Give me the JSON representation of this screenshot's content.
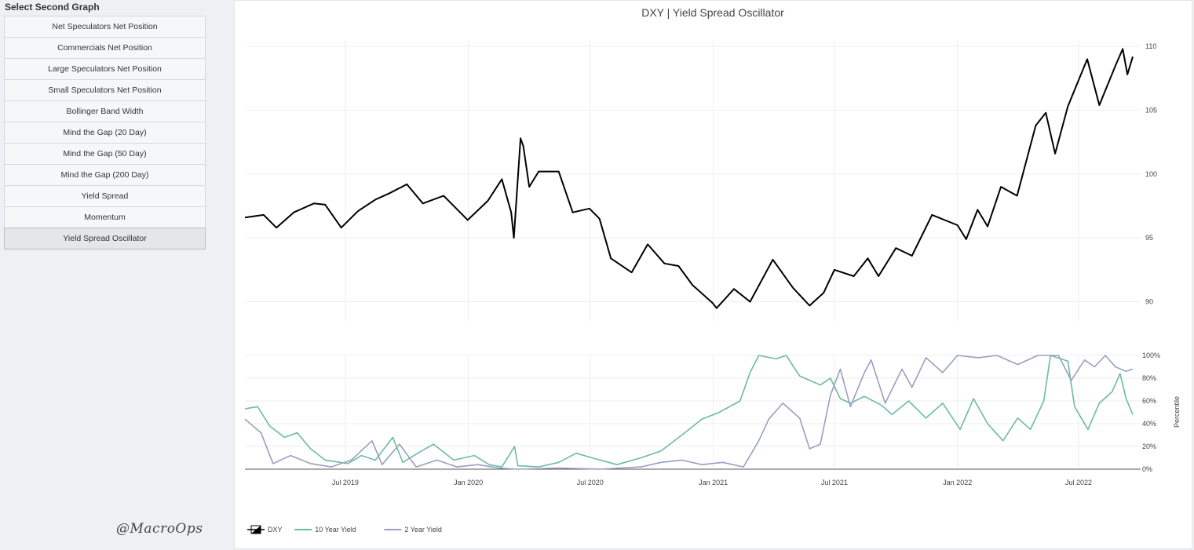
{
  "sidebar": {
    "title": "Select Second Graph",
    "buttons": [
      {
        "label": "Net Speculators Net Position",
        "active": false
      },
      {
        "label": "Commercials Net Position",
        "active": false
      },
      {
        "label": "Large Speculators Net Position",
        "active": false
      },
      {
        "label": "Small Speculators Net Position",
        "active": false
      },
      {
        "label": "Bollinger Band Width",
        "active": false
      },
      {
        "label": "Mind the Gap (20 Day)",
        "active": false
      },
      {
        "label": "Mind the Gap (50 Day)",
        "active": false
      },
      {
        "label": "Mind the Gap (200 Day)",
        "active": false
      },
      {
        "label": "Yield Spread",
        "active": false
      },
      {
        "label": "Momentum",
        "active": false
      },
      {
        "label": "Yield Spread Oscillator",
        "active": true
      }
    ]
  },
  "watermark": "@MacroOps",
  "chart_data": {
    "type": "line",
    "title": "DXY | Yield Spread Oscillator",
    "x_ticks": [
      "Jul 2019",
      "Jan 2020",
      "Jul 2020",
      "Jan 2021",
      "Jul 2021",
      "Jan 2022",
      "Jul 2022"
    ],
    "x_tick_dates": [
      "2019-07-01",
      "2020-01-01",
      "2020-07-01",
      "2021-01-01",
      "2021-07-01",
      "2022-01-01",
      "2022-07-01"
    ],
    "x_range": [
      "2019-02-01",
      "2022-09-20"
    ],
    "grid": true,
    "legend_position": "bottom-left",
    "top_panel": {
      "y_range": [
        88.5,
        110.5
      ],
      "y_ticks": [
        "90",
        "95",
        "100",
        "105",
        "110"
      ],
      "y_tick_values": [
        90,
        95,
        100,
        105,
        110
      ],
      "series": [
        {
          "name": "DXY",
          "color": "#000000",
          "points": [
            [
              "2019-02-01",
              96.6
            ],
            [
              "2019-03-01",
              96.8
            ],
            [
              "2019-03-20",
              95.8
            ],
            [
              "2019-04-15",
              97.0
            ],
            [
              "2019-05-15",
              97.7
            ],
            [
              "2019-06-01",
              97.6
            ],
            [
              "2019-06-25",
              95.8
            ],
            [
              "2019-07-20",
              97.1
            ],
            [
              "2019-08-15",
              98.0
            ],
            [
              "2019-09-05",
              98.5
            ],
            [
              "2019-10-01",
              99.2
            ],
            [
              "2019-10-25",
              97.7
            ],
            [
              "2019-11-25",
              98.3
            ],
            [
              "2019-12-31",
              96.4
            ],
            [
              "2020-01-30",
              97.9
            ],
            [
              "2020-02-20",
              99.6
            ],
            [
              "2020-03-05",
              97.0
            ],
            [
              "2020-03-09",
              95.0
            ],
            [
              "2020-03-19",
              102.8
            ],
            [
              "2020-03-23",
              102.2
            ],
            [
              "2020-04-01",
              99.0
            ],
            [
              "2020-04-15",
              100.2
            ],
            [
              "2020-05-15",
              100.2
            ],
            [
              "2020-06-05",
              97.0
            ],
            [
              "2020-06-30",
              97.3
            ],
            [
              "2020-07-15",
              96.5
            ],
            [
              "2020-08-01",
              93.4
            ],
            [
              "2020-09-01",
              92.3
            ],
            [
              "2020-09-25",
              94.5
            ],
            [
              "2020-10-20",
              93.0
            ],
            [
              "2020-11-10",
              92.8
            ],
            [
              "2020-12-01",
              91.3
            ],
            [
              "2020-12-31",
              89.9
            ],
            [
              "2021-01-06",
              89.5
            ],
            [
              "2021-02-01",
              91.0
            ],
            [
              "2021-02-25",
              90.0
            ],
            [
              "2021-03-31",
              93.3
            ],
            [
              "2021-04-30",
              91.1
            ],
            [
              "2021-05-25",
              89.7
            ],
            [
              "2021-06-15",
              90.7
            ],
            [
              "2021-07-01",
              92.5
            ],
            [
              "2021-07-30",
              92.0
            ],
            [
              "2021-08-20",
              93.4
            ],
            [
              "2021-09-05",
              92.0
            ],
            [
              "2021-10-01",
              94.2
            ],
            [
              "2021-10-25",
              93.6
            ],
            [
              "2021-11-24",
              96.8
            ],
            [
              "2022-01-01",
              96.0
            ],
            [
              "2022-01-14",
              94.9
            ],
            [
              "2022-01-31",
              97.2
            ],
            [
              "2022-02-15",
              95.9
            ],
            [
              "2022-03-07",
              99.0
            ],
            [
              "2022-03-31",
              98.3
            ],
            [
              "2022-04-28",
              103.8
            ],
            [
              "2022-05-13",
              104.8
            ],
            [
              "2022-05-27",
              101.6
            ],
            [
              "2022-06-15",
              105.3
            ],
            [
              "2022-07-14",
              109.0
            ],
            [
              "2022-08-01",
              105.4
            ],
            [
              "2022-08-26",
              108.6
            ],
            [
              "2022-09-05",
              109.8
            ],
            [
              "2022-09-12",
              107.8
            ],
            [
              "2022-09-20",
              109.2
            ]
          ]
        }
      ]
    },
    "bottom_panel": {
      "ylabel": "Percentile",
      "y_range": [
        0,
        100
      ],
      "y_ticks": [
        "0%",
        "20%",
        "40%",
        "60%",
        "80%",
        "100%"
      ],
      "y_tick_values": [
        0,
        20,
        40,
        60,
        80,
        100
      ],
      "series": [
        {
          "name": "10 Year Yield",
          "color": "#6dbb9f",
          "points": [
            [
              "2019-02-01",
              53
            ],
            [
              "2019-02-20",
              55
            ],
            [
              "2019-03-10",
              38
            ],
            [
              "2019-04-01",
              28
            ],
            [
              "2019-04-20",
              32
            ],
            [
              "2019-05-10",
              18
            ],
            [
              "2019-06-01",
              8
            ],
            [
              "2019-07-05",
              5
            ],
            [
              "2019-07-25",
              12
            ],
            [
              "2019-08-15",
              8
            ],
            [
              "2019-09-10",
              28
            ],
            [
              "2019-09-25",
              6
            ],
            [
              "2019-10-20",
              15
            ],
            [
              "2019-11-10",
              22
            ],
            [
              "2019-12-10",
              8
            ],
            [
              "2020-01-10",
              12
            ],
            [
              "2020-02-01",
              4
            ],
            [
              "2020-02-20",
              2
            ],
            [
              "2020-03-10",
              20
            ],
            [
              "2020-03-15",
              3
            ],
            [
              "2020-04-15",
              2
            ],
            [
              "2020-05-15",
              6
            ],
            [
              "2020-06-10",
              14
            ],
            [
              "2020-07-10",
              9
            ],
            [
              "2020-08-10",
              4
            ],
            [
              "2020-09-15",
              10
            ],
            [
              "2020-10-15",
              16
            ],
            [
              "2020-11-15",
              30
            ],
            [
              "2020-12-15",
              44
            ],
            [
              "2021-01-10",
              50
            ],
            [
              "2021-02-10",
              60
            ],
            [
              "2021-02-25",
              85
            ],
            [
              "2021-03-10",
              100
            ],
            [
              "2021-04-05",
              97
            ],
            [
              "2021-04-20",
              100
            ],
            [
              "2021-05-10",
              82
            ],
            [
              "2021-06-10",
              74
            ],
            [
              "2021-06-25",
              80
            ],
            [
              "2021-07-10",
              62
            ],
            [
              "2021-07-25",
              58
            ],
            [
              "2021-08-15",
              64
            ],
            [
              "2021-09-10",
              56
            ],
            [
              "2021-09-25",
              48
            ],
            [
              "2021-10-20",
              60
            ],
            [
              "2021-11-15",
              45
            ],
            [
              "2021-12-10",
              58
            ],
            [
              "2022-01-05",
              35
            ],
            [
              "2022-01-25",
              62
            ],
            [
              "2022-02-15",
              40
            ],
            [
              "2022-03-10",
              25
            ],
            [
              "2022-04-01",
              45
            ],
            [
              "2022-04-20",
              35
            ],
            [
              "2022-05-10",
              60
            ],
            [
              "2022-05-20",
              100
            ],
            [
              "2022-06-15",
              95
            ],
            [
              "2022-06-25",
              55
            ],
            [
              "2022-07-15",
              35
            ],
            [
              "2022-08-01",
              58
            ],
            [
              "2022-08-20",
              68
            ],
            [
              "2022-09-01",
              84
            ],
            [
              "2022-09-10",
              62
            ],
            [
              "2022-09-20",
              48
            ]
          ]
        },
        {
          "name": "2 Year Yield",
          "color": "#9a9fc0",
          "points": [
            [
              "2019-02-01",
              44
            ],
            [
              "2019-02-25",
              32
            ],
            [
              "2019-03-15",
              5
            ],
            [
              "2019-04-10",
              12
            ],
            [
              "2019-05-10",
              5
            ],
            [
              "2019-06-10",
              2
            ],
            [
              "2019-07-10",
              8
            ],
            [
              "2019-08-10",
              25
            ],
            [
              "2019-08-25",
              4
            ],
            [
              "2019-09-20",
              22
            ],
            [
              "2019-10-15",
              2
            ],
            [
              "2019-11-15",
              8
            ],
            [
              "2019-12-15",
              2
            ],
            [
              "2020-01-15",
              4
            ],
            [
              "2020-02-15",
              1
            ],
            [
              "2020-03-15",
              0
            ],
            [
              "2020-05-15",
              1
            ],
            [
              "2020-07-15",
              0
            ],
            [
              "2020-09-15",
              2
            ],
            [
              "2020-10-15",
              6
            ],
            [
              "2020-11-15",
              8
            ],
            [
              "2020-12-15",
              4
            ],
            [
              "2021-01-15",
              6
            ],
            [
              "2021-02-15",
              2
            ],
            [
              "2021-03-10",
              25
            ],
            [
              "2021-03-25",
              44
            ],
            [
              "2021-04-15",
              58
            ],
            [
              "2021-05-10",
              45
            ],
            [
              "2021-05-25",
              18
            ],
            [
              "2021-06-10",
              22
            ],
            [
              "2021-06-25",
              65
            ],
            [
              "2021-07-10",
              88
            ],
            [
              "2021-07-25",
              55
            ],
            [
              "2021-08-15",
              85
            ],
            [
              "2021-08-25",
              96
            ],
            [
              "2021-09-15",
              58
            ],
            [
              "2021-10-10",
              88
            ],
            [
              "2021-10-25",
              72
            ],
            [
              "2021-11-15",
              98
            ],
            [
              "2021-12-10",
              85
            ],
            [
              "2022-01-01",
              100
            ],
            [
              "2022-02-01",
              98
            ],
            [
              "2022-03-01",
              100
            ],
            [
              "2022-04-01",
              92
            ],
            [
              "2022-05-01",
              100
            ],
            [
              "2022-06-01",
              100
            ],
            [
              "2022-06-20",
              78
            ],
            [
              "2022-07-10",
              96
            ],
            [
              "2022-07-25",
              90
            ],
            [
              "2022-08-10",
              100
            ],
            [
              "2022-08-25",
              90
            ],
            [
              "2022-09-10",
              86
            ],
            [
              "2022-09-20",
              88
            ]
          ]
        }
      ]
    },
    "legend": [
      {
        "label": "DXY",
        "color": "#000000"
      },
      {
        "label": "10 Year Yield",
        "color": "#6dbb9f"
      },
      {
        "label": "2 Year Yield",
        "color": "#9a9fc0"
      }
    ]
  }
}
